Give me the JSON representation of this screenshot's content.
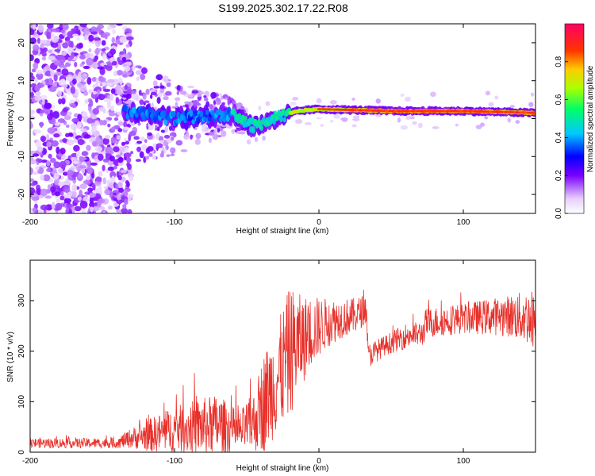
{
  "title": "S199.2025.302.17.22.R08",
  "chart_data": [
    {
      "type": "heatmap",
      "name": "spectrogram",
      "xlabel": "Height of straight line (km)",
      "ylabel": "Frequency (Hz)",
      "xlim": [
        -200,
        150
      ],
      "ylim": [
        -25,
        25
      ],
      "xticks": [
        -200,
        -100,
        0,
        100
      ],
      "xtick_labels": [
        "-200",
        "-100",
        "0",
        "100"
      ],
      "yticks": [
        -20,
        -10,
        0,
        10,
        20
      ],
      "ytick_labels": [
        "-20",
        "-10",
        "0",
        "10",
        "20"
      ],
      "colorbar": {
        "label": "Normalized spectral amplitude",
        "range": [
          0,
          1
        ],
        "ticks": [
          0.0,
          0.2,
          0.4,
          0.6,
          0.8
        ],
        "tick_labels": [
          "0.0",
          "0.2",
          "0.4",
          "0.6",
          "0.8"
        ]
      },
      "ridge_frequency_hz": [
        {
          "x": -135,
          "f": 2
        },
        {
          "x": -100,
          "f": 0
        },
        {
          "x": -60,
          "f": 1
        },
        {
          "x": -45,
          "f": -2
        },
        {
          "x": -30,
          "f": 0
        },
        {
          "x": -15,
          "f": 2
        },
        {
          "x": 0,
          "f": 2.5
        },
        {
          "x": 50,
          "f": 2
        },
        {
          "x": 100,
          "f": 2
        },
        {
          "x": 150,
          "f": 1.5
        }
      ]
    },
    {
      "type": "line",
      "name": "snr",
      "xlabel": "Height of straight line (km)",
      "ylabel": "SNR (10 * v/v)",
      "xlim": [
        -200,
        150
      ],
      "ylim": [
        0,
        380
      ],
      "xticks": [
        -200,
        -100,
        0,
        100
      ],
      "xtick_labels": [
        "-200",
        "-100",
        "0",
        "100"
      ],
      "yticks": [
        0,
        100,
        200,
        300
      ],
      "ytick_labels": [
        "0",
        "100",
        "200",
        "300"
      ],
      "color": "#e8302a",
      "envelope": [
        {
          "x": -200,
          "mean": 18,
          "noise": 10
        },
        {
          "x": -140,
          "mean": 18,
          "noise": 10
        },
        {
          "x": -130,
          "mean": 28,
          "noise": 20
        },
        {
          "x": -115,
          "mean": 35,
          "noise": 35
        },
        {
          "x": -100,
          "mean": 45,
          "noise": 45
        },
        {
          "x": -85,
          "mean": 50,
          "noise": 55
        },
        {
          "x": -70,
          "mean": 55,
          "noise": 60
        },
        {
          "x": -55,
          "mean": 40,
          "noise": 40
        },
        {
          "x": -45,
          "mean": 60,
          "noise": 60
        },
        {
          "x": -38,
          "mean": 100,
          "noise": 100
        },
        {
          "x": -28,
          "mean": 150,
          "noise": 110
        },
        {
          "x": -20,
          "mean": 200,
          "noise": 130
        },
        {
          "x": -12,
          "mean": 220,
          "noise": 90
        },
        {
          "x": -5,
          "mean": 240,
          "noise": 70
        },
        {
          "x": 5,
          "mean": 255,
          "noise": 50
        },
        {
          "x": 15,
          "mean": 265,
          "noise": 40
        },
        {
          "x": 25,
          "mean": 270,
          "noise": 35
        },
        {
          "x": 33,
          "mean": 285,
          "noise": 30
        },
        {
          "x": 34,
          "mean": 190,
          "noise": 25
        },
        {
          "x": 45,
          "mean": 210,
          "noise": 20
        },
        {
          "x": 60,
          "mean": 230,
          "noise": 25
        },
        {
          "x": 72,
          "mean": 235,
          "noise": 25
        },
        {
          "x": 74,
          "mean": 255,
          "noise": 30
        },
        {
          "x": 100,
          "mean": 265,
          "noise": 30
        },
        {
          "x": 130,
          "mean": 270,
          "noise": 40
        },
        {
          "x": 150,
          "mean": 265,
          "noise": 60
        }
      ]
    }
  ]
}
